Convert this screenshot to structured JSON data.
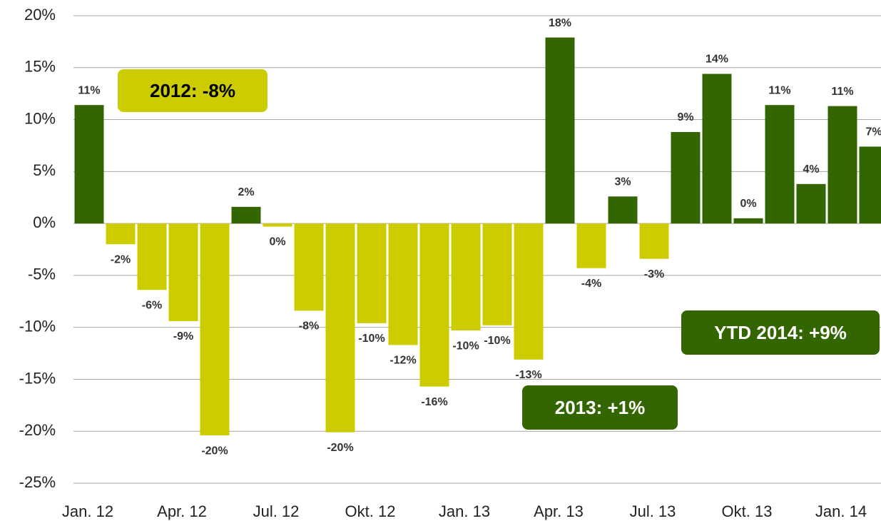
{
  "chart_data": {
    "type": "bar",
    "categories": [
      "Jan. 12",
      null,
      null,
      "Apr. 12",
      null,
      null,
      "Jul. 12",
      null,
      null,
      "Okt. 12",
      null,
      null,
      "Jan. 13",
      null,
      null,
      "Apr. 13",
      null,
      null,
      "Jul. 13",
      null,
      null,
      "Okt. 13",
      null,
      null,
      "Jan. 14",
      null
    ],
    "values": [
      11.4,
      -2,
      -6.4,
      -9.4,
      -20.4,
      1.6,
      -0.3,
      -8.4,
      -20.1,
      -9.6,
      -11.7,
      -15.7,
      -10.3,
      -9.8,
      -13.1,
      17.9,
      -4.3,
      2.6,
      -3.4,
      8.8,
      14.4,
      0.5,
      11.4,
      3.8,
      11.3,
      7.4
    ],
    "value_labels": [
      "11%",
      "-2%",
      "-6%",
      "-9%",
      "-20%",
      "2%",
      "0%",
      "-8%",
      "-20%",
      "-10%",
      "-12%",
      "-16%",
      "-10%",
      "-10%",
      "-13%",
      "18%",
      "-4%",
      "3%",
      "-3%",
      "9%",
      "14%",
      "0%",
      "11%",
      "4%",
      "11%",
      "7%"
    ],
    "colors": {
      "positive": "#336600",
      "negative": "#cccc00"
    },
    "ylim": [
      -25,
      20
    ],
    "yticks": [
      {
        "value": -25,
        "label": "-25%"
      },
      {
        "value": -20,
        "label": "-20%"
      },
      {
        "value": -15,
        "label": "-15%"
      },
      {
        "value": -10,
        "label": "-10%"
      },
      {
        "value": -5,
        "label": "-5%"
      },
      {
        "value": 0,
        "label": "0%"
      },
      {
        "value": 5,
        "label": "5%"
      },
      {
        "value": 10,
        "label": "10%"
      },
      {
        "value": 15,
        "label": "15%"
      },
      {
        "value": 20,
        "label": "20%"
      }
    ],
    "grid": true,
    "annotations": [
      {
        "text": "2012:  -8%",
        "color": "#cccc00",
        "text_color": "#000000"
      },
      {
        "text": "2013:  +1%",
        "color": "#336600",
        "text_color": "#ffffff"
      },
      {
        "text": "YTD 2014:  +9%",
        "color": "#336600",
        "text_color": "#ffffff"
      }
    ]
  }
}
